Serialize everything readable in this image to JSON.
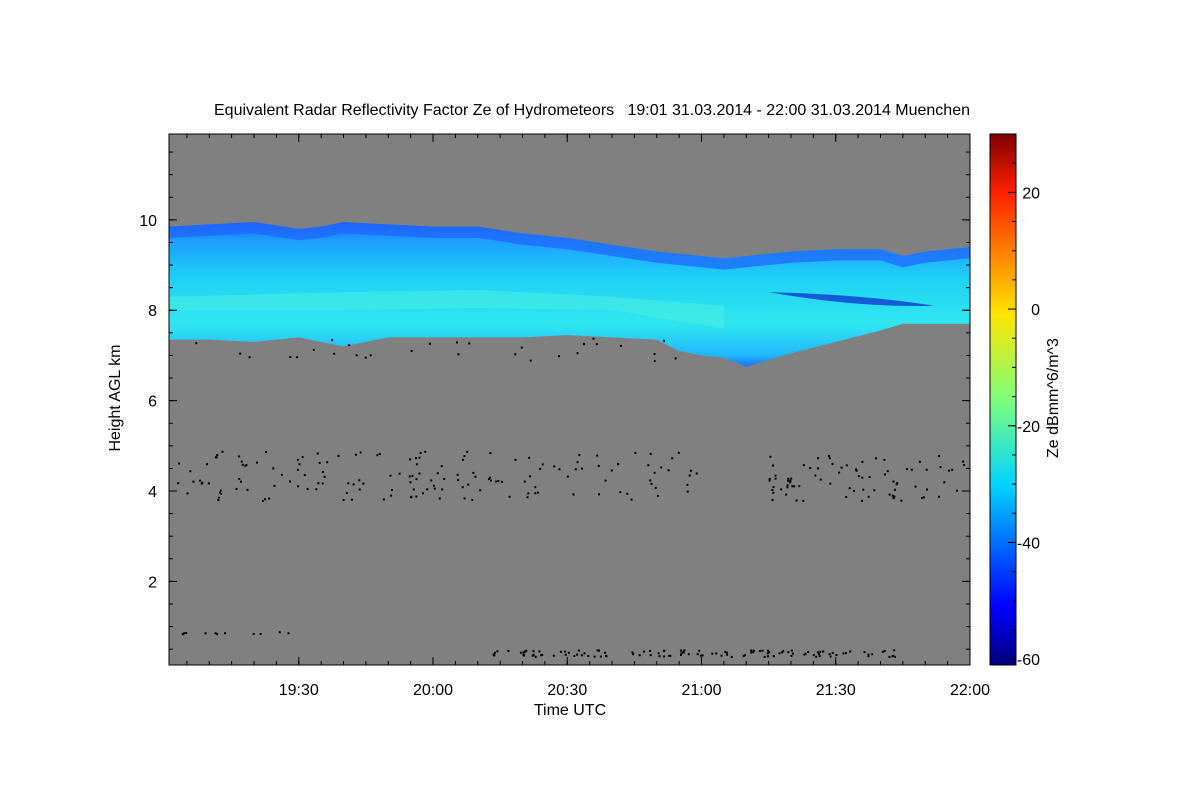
{
  "chart_data": {
    "type": "heatmap",
    "title": "Equivalent Radar Reflectivity Factor Ze of Hydrometeors   19:01 31.03.2014 - 22:00 31.03.2014 Muenchen",
    "xlabel": "Time UTC",
    "ylabel": "Height AGL km",
    "x_tick_labels": [
      "19:30",
      "20:00",
      "20:30",
      "21:00",
      "21:30",
      "22:00"
    ],
    "x_tick_values_min": [
      1170,
      1200,
      1230,
      1260,
      1290,
      1320
    ],
    "xlim_min": [
      1141,
      1320
    ],
    "y_ticks": [
      2,
      4,
      6,
      8,
      10
    ],
    "ylim": [
      0.15,
      11.9
    ],
    "colorbar": {
      "label": "Ze dBmm^6/m^3",
      "ticks": [
        20,
        0,
        -20,
        -40,
        -60
      ],
      "range": [
        -61,
        30
      ]
    },
    "colors": {
      "background_no_signal": "#808080",
      "cloud_core": "#30e6f2",
      "cloud_body": "#20c8ff",
      "cloud_edge": "#1e64ff",
      "cloud_deep": "#1030d0",
      "noise": "#000000"
    },
    "cloud_layer": [
      {
        "t": 1141,
        "base": 7.35,
        "top": 9.85
      },
      {
        "t": 1150,
        "base": 7.35,
        "top": 9.9
      },
      {
        "t": 1160,
        "base": 7.3,
        "top": 9.95
      },
      {
        "t": 1170,
        "base": 7.4,
        "top": 9.8
      },
      {
        "t": 1175,
        "base": 7.3,
        "top": 9.85
      },
      {
        "t": 1180,
        "base": 7.2,
        "top": 9.95
      },
      {
        "t": 1190,
        "base": 7.4,
        "top": 9.9
      },
      {
        "t": 1200,
        "base": 7.4,
        "top": 9.85
      },
      {
        "t": 1210,
        "base": 7.4,
        "top": 9.85
      },
      {
        "t": 1220,
        "base": 7.4,
        "top": 9.7
      },
      {
        "t": 1230,
        "base": 7.45,
        "top": 9.6
      },
      {
        "t": 1240,
        "base": 7.4,
        "top": 9.45
      },
      {
        "t": 1250,
        "base": 7.35,
        "top": 9.3
      },
      {
        "t": 1255,
        "base": 7.1,
        "top": 9.25
      },
      {
        "t": 1260,
        "base": 7.0,
        "top": 9.2
      },
      {
        "t": 1265,
        "base": 6.95,
        "top": 9.15
      },
      {
        "t": 1270,
        "base": 6.75,
        "top": 9.2
      },
      {
        "t": 1280,
        "base": 7.05,
        "top": 9.3
      },
      {
        "t": 1290,
        "base": 7.3,
        "top": 9.35
      },
      {
        "t": 1300,
        "base": 7.55,
        "top": 9.35
      },
      {
        "t": 1305,
        "base": 7.7,
        "top": 9.2
      },
      {
        "t": 1310,
        "base": 7.7,
        "top": 9.3
      },
      {
        "t": 1320,
        "base": 7.7,
        "top": 9.4
      }
    ]
  }
}
